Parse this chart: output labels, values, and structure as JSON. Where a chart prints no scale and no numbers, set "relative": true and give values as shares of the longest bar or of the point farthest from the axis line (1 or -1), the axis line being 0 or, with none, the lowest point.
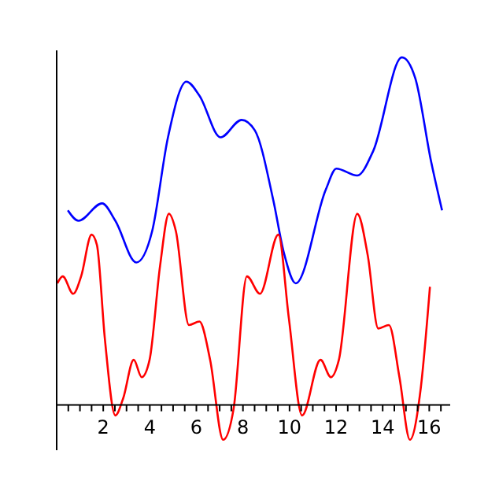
{
  "chart_data": {
    "type": "line",
    "relative": true,
    "xlim": [
      0,
      16.9
    ],
    "xticks": [
      {
        "value": 0.5,
        "label": null
      },
      {
        "value": 1,
        "label": null
      },
      {
        "value": 1.5,
        "label": null
      },
      2,
      {
        "value": 2.5,
        "label": null
      },
      {
        "value": 3,
        "label": null
      },
      {
        "value": 3.5,
        "label": null
      },
      4,
      {
        "value": 4.5,
        "label": null
      },
      {
        "value": 5,
        "label": null
      },
      {
        "value": 5.5,
        "label": null
      },
      6,
      {
        "value": 6.5,
        "label": null
      },
      {
        "value": 7,
        "label": null
      },
      {
        "value": 7.5,
        "label": null
      },
      8,
      {
        "value": 8.5,
        "label": null
      },
      {
        "value": 9,
        "label": null
      },
      {
        "value": 9.5,
        "label": null
      },
      10,
      {
        "value": 10.5,
        "label": null
      },
      {
        "value": 11,
        "label": null
      },
      {
        "value": 11.5,
        "label": null
      },
      12,
      {
        "value": 12.5,
        "label": null
      },
      {
        "value": 13,
        "label": null
      },
      {
        "value": 13.5,
        "label": null
      },
      14,
      {
        "value": 14.5,
        "label": null
      },
      {
        "value": 15,
        "label": null
      },
      {
        "value": 15.5,
        "label": null
      },
      16,
      {
        "value": 16.5,
        "label": null
      }
    ],
    "tick_labels": "x",
    "marker": "none",
    "line_style": "solid",
    "series": [
      {
        "color": "#0000ff",
        "x": [
          0.48,
          0.94,
          1.95,
          2.52,
          3.42,
          4.1,
          4.78,
          5.57,
          6.13,
          7.04,
          7.94,
          8.51,
          9.3,
          9.75,
          10.27,
          11.56,
          12.01,
          12.91,
          13.59,
          14.83,
          15.4,
          16.08,
          16.55
        ],
        "values": [
          0.56,
          0.53,
          0.58,
          0.53,
          0.41,
          0.5,
          0.77,
          0.93,
          0.89,
          0.77,
          0.82,
          0.79,
          0.59,
          0.44,
          0.35,
          0.62,
          0.68,
          0.66,
          0.73,
          1.0,
          0.94,
          0.7,
          0.56
        ]
      },
      {
        "color": "#ff0000",
        "x": [
          0.03,
          0.26,
          0.71,
          1.05,
          1.5,
          1.73,
          2.07,
          2.52,
          2.86,
          3.31,
          3.65,
          3.99,
          4.44,
          4.82,
          5.12,
          5.68,
          6.13,
          6.59,
          7.15,
          7.6,
          8.17,
          8.73,
          9.52,
          9.97,
          10.54,
          11.33,
          11.78,
          12.12,
          12.91,
          13.36,
          13.81,
          14.27,
          14.72,
          15.17,
          15.62,
          16.03
        ],
        "values": [
          0.35,
          0.37,
          0.32,
          0.37,
          0.49,
          0.46,
          0.19,
          -0.03,
          0.02,
          0.13,
          0.08,
          0.13,
          0.4,
          0.55,
          0.5,
          0.23,
          0.24,
          0.13,
          -0.1,
          -0.01,
          0.37,
          0.32,
          0.49,
          0.25,
          -0.03,
          0.13,
          0.08,
          0.13,
          0.55,
          0.43,
          0.22,
          0.23,
          0.08,
          -0.1,
          0.04,
          0.34
        ]
      }
    ]
  }
}
